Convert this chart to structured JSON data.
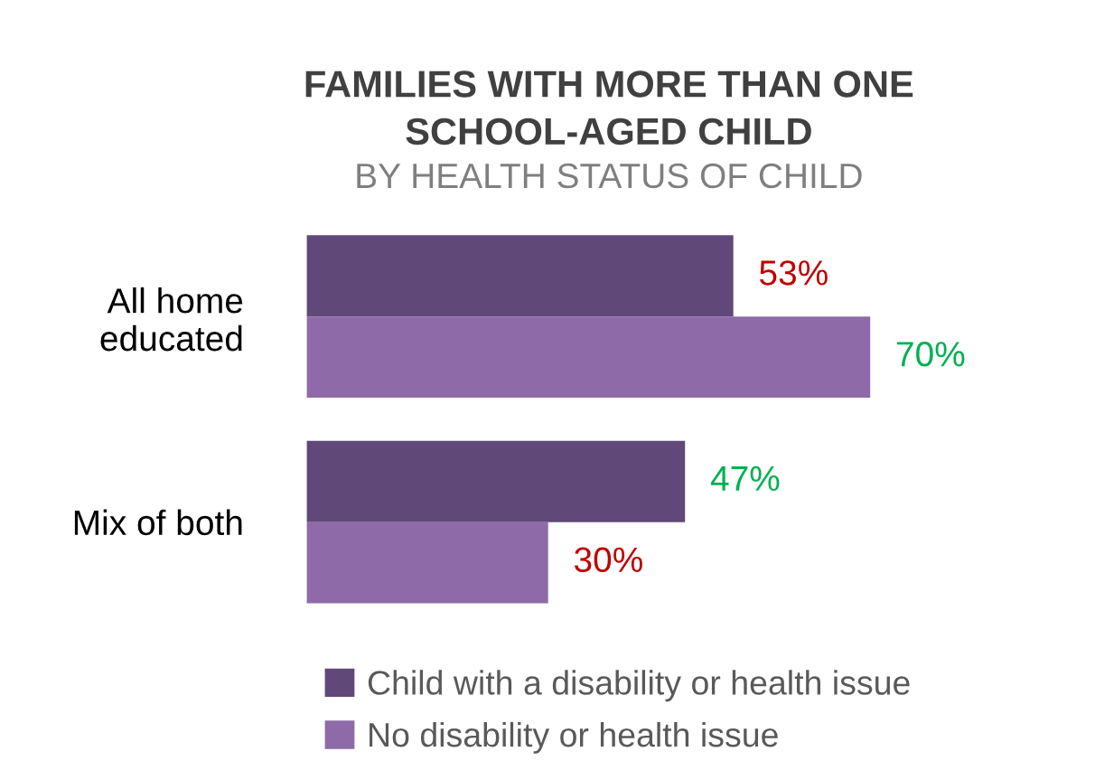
{
  "chart_data": {
    "type": "bar",
    "orientation": "horizontal",
    "title": "FAMILIES WITH MORE THAN ONE\nSCHOOL-AGED CHILD",
    "subtitle": "BY HEALTH STATUS OF CHILD",
    "categories": [
      "All home\neducated",
      "Mix of both"
    ],
    "series": [
      {
        "name": "Child with a disability or health issue",
        "color": "#604878",
        "values": [
          53,
          47
        ],
        "value_labels": [
          "53%",
          "47%"
        ]
      },
      {
        "name": "No disability or health issue",
        "color": "#8e6ba8",
        "values": [
          70,
          30
        ],
        "value_labels": [
          "70%",
          "30%"
        ]
      }
    ],
    "legend": "bottom",
    "tick_labels": "y",
    "grid": false
  }
}
